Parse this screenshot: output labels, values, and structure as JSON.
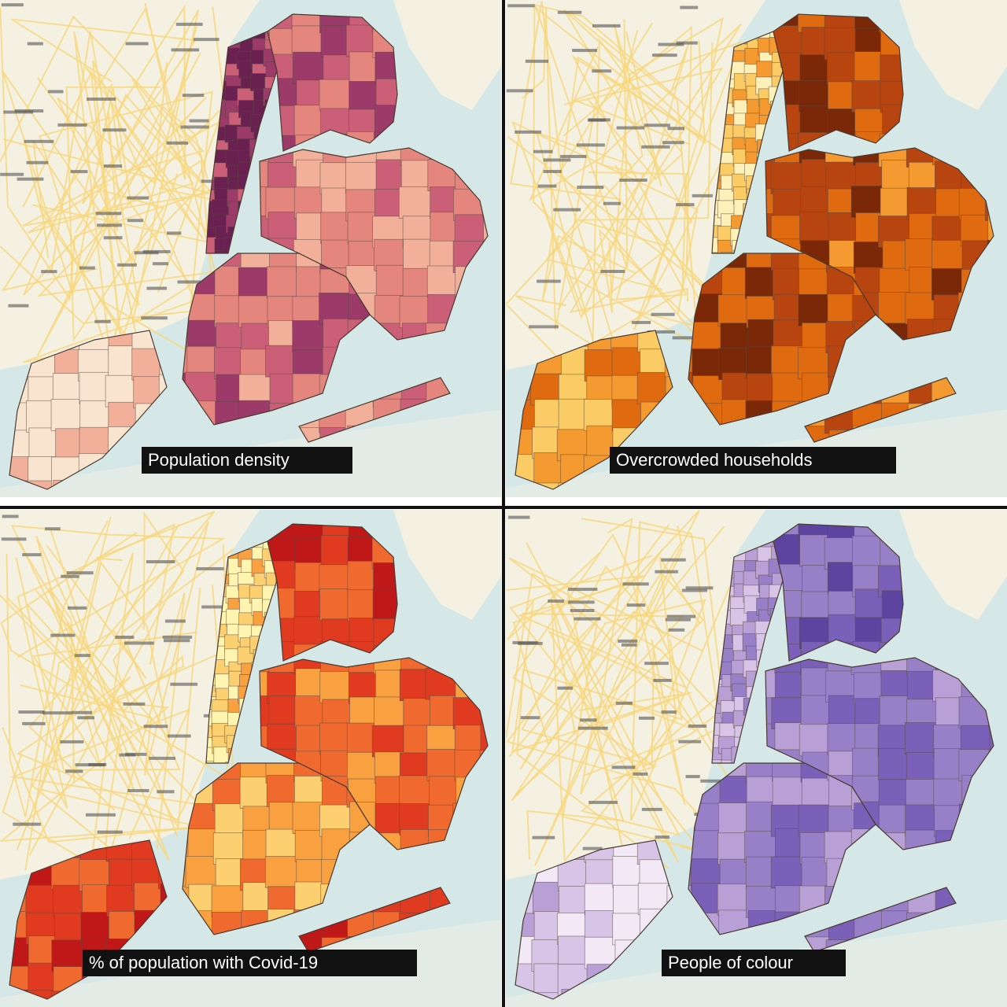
{
  "panels": [
    {
      "caption": "Population density"
    },
    {
      "caption": "Overcrowded households"
    },
    {
      "caption": "% of population with Covid-19"
    },
    {
      "caption": "People of colour"
    }
  ]
}
